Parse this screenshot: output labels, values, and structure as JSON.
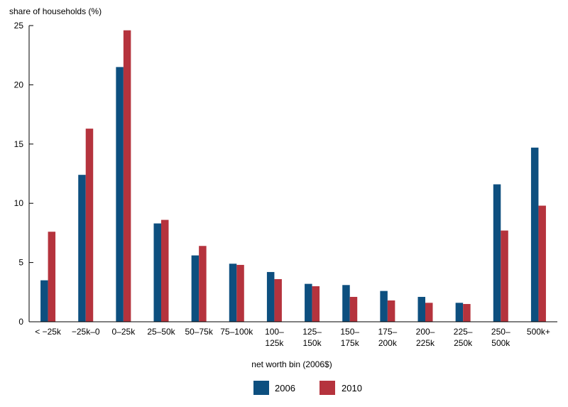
{
  "chart_data": {
    "type": "bar",
    "ylabel": "share of households (%)",
    "xlabel": "net worth bin (2006$)",
    "ylim": [
      0,
      25
    ],
    "yticks": [
      0,
      5,
      10,
      15,
      20,
      25
    ],
    "grid": false,
    "legend_position": "bottom-center",
    "categories": [
      [
        "< −25k"
      ],
      [
        "−25k–0"
      ],
      [
        "0–25k"
      ],
      [
        "25–50k"
      ],
      [
        "50–75k"
      ],
      [
        "75–100k"
      ],
      [
        "100–",
        "125k"
      ],
      [
        "125–",
        "150k"
      ],
      [
        "150–",
        "175k"
      ],
      [
        "175–",
        "200k"
      ],
      [
        "200–",
        "225k"
      ],
      [
        "225–",
        "250k"
      ],
      [
        "250–",
        "500k"
      ],
      [
        "500k+"
      ]
    ],
    "series": [
      {
        "name": "2006",
        "color": "#0d4f7f",
        "values": [
          3.5,
          12.4,
          21.5,
          8.3,
          5.6,
          4.9,
          4.2,
          3.2,
          3.1,
          2.6,
          2.1,
          1.6,
          11.6,
          14.7
        ]
      },
      {
        "name": "2010",
        "color": "#b5333d",
        "values": [
          7.6,
          16.3,
          24.6,
          8.6,
          6.4,
          4.8,
          3.6,
          3.0,
          2.1,
          1.8,
          1.6,
          1.5,
          7.7,
          9.8
        ]
      }
    ]
  }
}
